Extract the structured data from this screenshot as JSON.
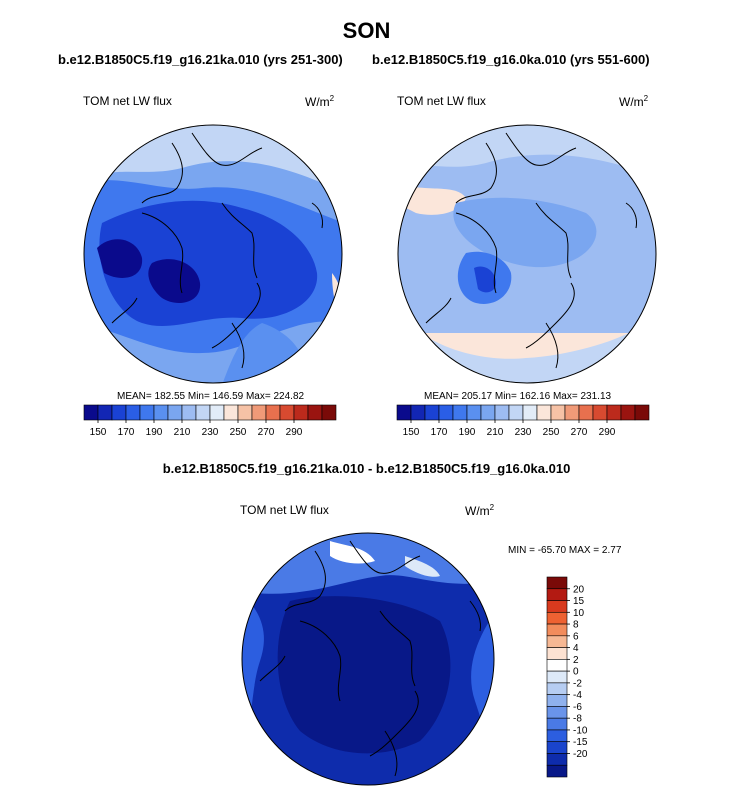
{
  "header": {
    "season": "SON",
    "left_run": "b.e12.B1850C5.f19_g16.21ka.010 (yrs 251-300)",
    "right_run": "b.e12.B1850C5.f19_g16.0ka.010 (yrs 551-600)",
    "diff_title": "b.e12.B1850C5.f19_g16.21ka.010 - b.e12.B1850C5.f19_g16.0ka.010"
  },
  "panels": {
    "left": {
      "variable": "TOM net LW flux",
      "units_base": "W/m",
      "units_exp": "2",
      "stats_text": "MEAN= 182.55  Min= 146.59  Max= 224.82"
    },
    "right": {
      "variable": "TOM net LW flux",
      "units_base": "W/m",
      "units_exp": "2",
      "stats_text": "MEAN= 205.17  Min= 162.16  Max= 231.13"
    },
    "diff": {
      "variable": "TOM net LW flux",
      "units_base": "W/m",
      "units_exp": "2",
      "stats_text": "MIN = -65.70 MAX =   2.77"
    }
  },
  "colorbar_abs": {
    "colors": [
      "#0a0a8c",
      "#1226b4",
      "#1a42d4",
      "#2a5ee6",
      "#3f78ee",
      "#5a90f0",
      "#7aa6f0",
      "#9dbcf2",
      "#c2d6f5",
      "#e2ecf8",
      "#fbe6da",
      "#f6c2a6",
      "#f09a78",
      "#e8704e",
      "#d84a30",
      "#bc2a1c",
      "#9a1410",
      "#7a0a08"
    ],
    "tick_labels": [
      "150",
      "170",
      "190",
      "210",
      "230",
      "250",
      "270",
      "290"
    ]
  },
  "colorbar_diff": {
    "colors": [
      "#7a0a08",
      "#b31a12",
      "#d83a1e",
      "#ee6232",
      "#f28c5c",
      "#f6b894",
      "#fde2d2",
      "#ffffff",
      "#dde9f8",
      "#b6cdf2",
      "#8fb1ee",
      "#6a94ea",
      "#4a7ae6",
      "#2c5ee0",
      "#1a44cc",
      "#0e2cac",
      "#081888"
    ],
    "tick_labels": [
      "20",
      "15",
      "10",
      "8",
      "6",
      "4",
      "2",
      "0",
      "-2",
      "-4",
      "-6",
      "-8",
      "-10",
      "-15",
      "-20"
    ]
  },
  "map_palette": {
    "ocean_light": "#c2d6f5",
    "ocean_mid": "#7aa6f0",
    "land_mid": "#3f78ee",
    "land_deep": "#1a42d4",
    "ice_deep": "#0a0a8c",
    "warm": "#fbe6da",
    "coast": "#000000"
  }
}
